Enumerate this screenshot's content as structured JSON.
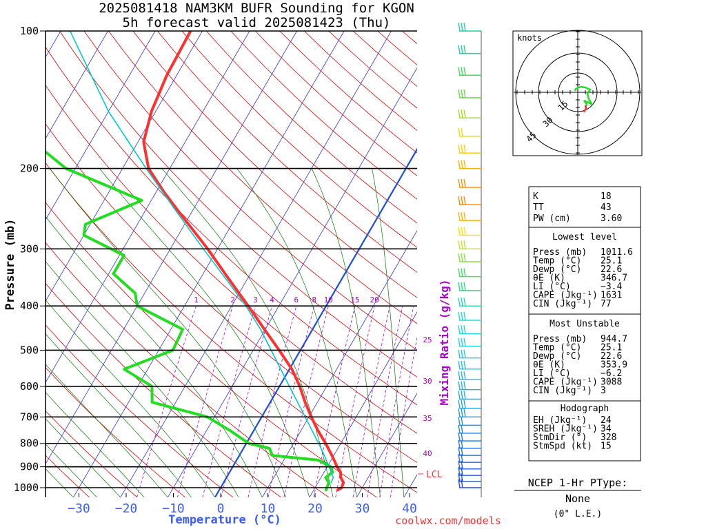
{
  "header": {
    "title_line1": "2025081418 NAM3KM BUFR Sounding for KGON",
    "title_line2": "5h forecast valid 2025081423 (Thu)"
  },
  "colors": {
    "temperature": "#ff3030",
    "dewpoint": "#22dd22",
    "parcel": "#00c8d0",
    "isotherm": "#3030e0",
    "dry_adiabat": "#e00000",
    "moist_adiabat": "#007700",
    "mixing_ratio": "#aa00cc",
    "freezing_line": "#1a4fd8",
    "temperature_axis": "#3a5cff"
  },
  "chart_data": {
    "type": "skew-t",
    "ylabel": "Pressure (mb)",
    "xlabel": "Temperature (°C)",
    "pressure_levels": [
      1000,
      900,
      800,
      700,
      600,
      500,
      400,
      300,
      200,
      100
    ],
    "pressure_range": [
      1050,
      100
    ],
    "pressure_scale": "log",
    "temperature_ticks": [
      -30,
      -20,
      -10,
      0,
      10,
      20,
      30,
      40
    ],
    "temperature_tick_labels": [
      "−30",
      "−20",
      "−10",
      "0",
      "10",
      "20",
      "30",
      "40"
    ],
    "temperature_range_at_bottom": [
      -40,
      42
    ],
    "mixing_ratio_label": "Mixing Ratio (g/kg)",
    "mixing_ratio_top_labels": [
      "1",
      "2",
      "3",
      "4",
      "6",
      "8",
      "10",
      "15",
      "20"
    ],
    "mixing_ratio_side_labels": [
      "25",
      "30",
      "35",
      "40"
    ],
    "lcl_label": "LCL",
    "lcl_pressure": 975,
    "series": [
      {
        "key": "temperature",
        "points": [
          [
            1011.6,
            25.1
          ],
          [
            1000,
            25.6
          ],
          [
            975,
            25.4
          ],
          [
            950,
            24.2
          ],
          [
            925,
            23.5
          ],
          [
            900,
            22.1
          ],
          [
            850,
            19.6
          ],
          [
            800,
            16.8
          ],
          [
            750,
            13.6
          ],
          [
            700,
            10.5
          ],
          [
            650,
            7.4
          ],
          [
            600,
            4.3
          ],
          [
            550,
            0.5
          ],
          [
            500,
            -4.5
          ],
          [
            450,
            -10.2
          ],
          [
            400,
            -16.5
          ],
          [
            350,
            -23.8
          ],
          [
            300,
            -32.1
          ],
          [
            250,
            -42.5
          ],
          [
            225,
            -48.4
          ],
          [
            200,
            -54.5
          ],
          [
            175,
            -58.8
          ],
          [
            150,
            -60.9
          ],
          [
            125,
            -62.1
          ],
          [
            100,
            -62.5
          ]
        ]
      },
      {
        "key": "dewpoint",
        "points": [
          [
            1011.6,
            22.6
          ],
          [
            1000,
            22.5
          ],
          [
            975,
            22.3
          ],
          [
            950,
            21.0
          ],
          [
            925,
            21.8
          ],
          [
            900,
            20.8
          ],
          [
            870,
            17.2
          ],
          [
            850,
            7.0
          ],
          [
            820,
            5.5
          ],
          [
            800,
            0.5
          ],
          [
            750,
            -5.0
          ],
          [
            700,
            -11.5
          ],
          [
            650,
            -25.0
          ],
          [
            600,
            -27.0
          ],
          [
            550,
            -35.0
          ],
          [
            500,
            -27.0
          ],
          [
            450,
            -27.5
          ],
          [
            400,
            -40.0
          ],
          [
            375,
            -42.0
          ],
          [
            340,
            -49.0
          ],
          [
            310,
            -49.0
          ],
          [
            280,
            -60.0
          ],
          [
            265,
            -61.0
          ],
          [
            235,
            -52.0
          ],
          [
            200,
            -72.0
          ],
          [
            180,
            -80.0
          ],
          [
            170,
            -82.0
          ]
        ]
      },
      {
        "key": "parcel",
        "points": [
          [
            975,
            22.8
          ],
          [
            950,
            22.6
          ],
          [
            900,
            20.4
          ],
          [
            850,
            18.0
          ],
          [
            800,
            15.3
          ],
          [
            700,
            9.2
          ],
          [
            600,
            2.1
          ],
          [
            500,
            -6.2
          ],
          [
            450,
            -11.0
          ],
          [
            400,
            -17.0
          ],
          [
            350,
            -24.4
          ],
          [
            300,
            -33.0
          ],
          [
            250,
            -43.0
          ],
          [
            200,
            -55.0
          ],
          [
            150,
            -70.0
          ],
          [
            100,
            -88.0
          ]
        ]
      }
    ],
    "wind_barbs": [
      {
        "p": 100,
        "color": "#20d0a0",
        "barbs": 3
      },
      {
        "p": 112,
        "color": "#20d0a0",
        "barbs": 3
      },
      {
        "p": 125,
        "color": "#40e060",
        "barbs": 3
      },
      {
        "p": 140,
        "color": "#60e040",
        "barbs": 3
      },
      {
        "p": 155,
        "color": "#a0e020",
        "barbs": 3
      },
      {
        "p": 170,
        "color": "#e0e000",
        "barbs": 2
      },
      {
        "p": 185,
        "color": "#ffd000",
        "barbs": 3
      },
      {
        "p": 200,
        "color": "#ffb000",
        "barbs": 3
      },
      {
        "p": 220,
        "color": "#ff9000",
        "barbs": 3
      },
      {
        "p": 240,
        "color": "#ff8800",
        "barbs": 3
      },
      {
        "p": 260,
        "color": "#ffb000",
        "barbs": 3
      },
      {
        "p": 280,
        "color": "#ffe000",
        "barbs": 3
      },
      {
        "p": 300,
        "color": "#c0e020",
        "barbs": 3
      },
      {
        "p": 320,
        "color": "#80e040",
        "barbs": 3
      },
      {
        "p": 345,
        "color": "#40e060",
        "barbs": 3
      },
      {
        "p": 370,
        "color": "#20e080",
        "barbs": 3
      },
      {
        "p": 400,
        "color": "#20e0b0",
        "barbs": 3
      },
      {
        "p": 430,
        "color": "#20e0d0",
        "barbs": 3
      },
      {
        "p": 460,
        "color": "#20d8e0",
        "barbs": 3
      },
      {
        "p": 490,
        "color": "#20d0e8",
        "barbs": 3
      },
      {
        "p": 520,
        "color": "#20c8f0",
        "barbs": 3
      },
      {
        "p": 550,
        "color": "#20c0f0",
        "barbs": 3
      },
      {
        "p": 580,
        "color": "#20b8f0",
        "barbs": 3
      },
      {
        "p": 610,
        "color": "#20b0f0",
        "barbs": 3
      },
      {
        "p": 640,
        "color": "#20a8f0",
        "barbs": 3
      },
      {
        "p": 670,
        "color": "#20a0f0",
        "barbs": 3
      },
      {
        "p": 700,
        "color": "#2098f0",
        "barbs": 3
      },
      {
        "p": 730,
        "color": "#2090f0",
        "barbs": 2
      },
      {
        "p": 760,
        "color": "#2088f0",
        "barbs": 2
      },
      {
        "p": 790,
        "color": "#2080f0",
        "barbs": 2
      },
      {
        "p": 820,
        "color": "#2078f0",
        "barbs": 2
      },
      {
        "p": 850,
        "color": "#2070f0",
        "barbs": 2
      },
      {
        "p": 880,
        "color": "#2068f0",
        "barbs": 2
      },
      {
        "p": 910,
        "color": "#2060f0",
        "barbs": 2
      },
      {
        "p": 940,
        "color": "#2058f0",
        "barbs": 2
      },
      {
        "p": 970,
        "color": "#2050f0",
        "barbs": 2
      },
      {
        "p": 1000,
        "color": "#2048f0",
        "barbs": 2
      }
    ]
  },
  "hodograph": {
    "label": "knots",
    "ring_labels": [
      "15",
      "30",
      "45"
    ]
  },
  "stats": {
    "k_label": "K",
    "k_value": "18",
    "tt_label": "TT",
    "tt_value": "43",
    "pw_label": "PW (cm)",
    "pw_value": "3.60",
    "lowest_header": "Lowest level",
    "lowest": [
      {
        "label": "Press (mb)",
        "value": "1011.6"
      },
      {
        "label": "Temp (°C)",
        "value": "25.1"
      },
      {
        "label": "Dewp (°C)",
        "value": "22.6"
      },
      {
        "label": "θE (K)",
        "value": "346.7"
      },
      {
        "label": "LI (°C)",
        "value": "−3.4"
      },
      {
        "label": "CAPE (Jkg⁻¹)",
        "value": "1631"
      },
      {
        "label": "CIN (Jkg⁻¹)",
        "value": "77"
      }
    ],
    "unstable_header": "Most Unstable",
    "unstable": [
      {
        "label": "Press (mb)",
        "value": "944.7"
      },
      {
        "label": "Temp (°C)",
        "value": "25.1"
      },
      {
        "label": "Dewp (°C)",
        "value": "22.6"
      },
      {
        "label": "θE (K)",
        "value": "353.9"
      },
      {
        "label": "LI (°C)",
        "value": "−6.2"
      },
      {
        "label": "CAPE (Jkg⁻¹)",
        "value": "3088"
      },
      {
        "label": "CIN (Jkg⁻¹)",
        "value": "3"
      }
    ],
    "hodo_header": "Hodograph",
    "hodo": [
      {
        "label": "EH (Jkg⁻¹)",
        "value": "24"
      },
      {
        "label": "SREH (Jkg⁻¹)",
        "value": "34"
      },
      {
        "label": "StmDir (°)",
        "value": "328"
      },
      {
        "label": "StmSpd (kt)",
        "value": "15"
      }
    ]
  },
  "ptype": {
    "title": "NCEP 1-Hr PType:",
    "value": "None",
    "sub": "(0\" L.E.)"
  },
  "footer": {
    "credit": "coolwx.com/models"
  }
}
